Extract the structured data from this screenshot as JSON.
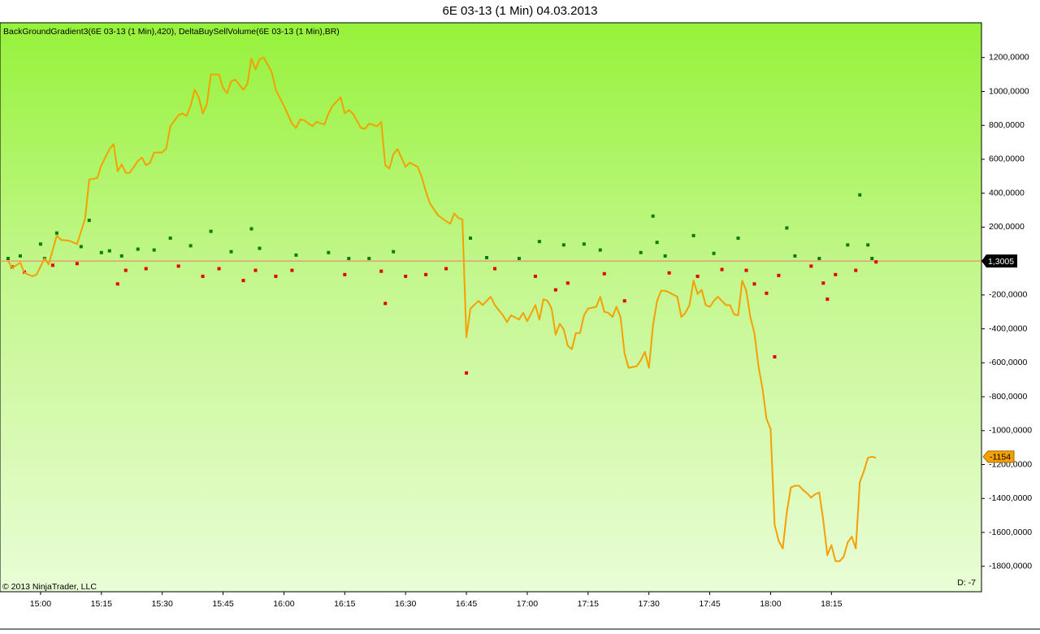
{
  "chart_data": {
    "type": "line",
    "title": "6E 03-13 (1 Min)  04.03.2013",
    "indicator_label": "BackGroundGradient3(6E 03-13 (1 Min),420), DeltaBuySellVolume(6E 03-13 (1 Min),BR)",
    "copyright": "© 2013 NinjaTrader, LLC",
    "corner_note": "D: -7",
    "price_marker": "1,3005",
    "xlim": [
      "14:50",
      "18:52"
    ],
    "xticks": [
      "15:00",
      "15:15",
      "15:30",
      "15:45",
      "16:00",
      "16:15",
      "16:30",
      "16:45",
      "17:00",
      "17:15",
      "17:30",
      "17:45",
      "18:00",
      "18:15"
    ],
    "ylim": [
      -1950000,
      1405000
    ],
    "yticks": [
      {
        "value": 1200000,
        "label": "1200,0000"
      },
      {
        "value": 1000000,
        "label": "1000,0000"
      },
      {
        "value": 800000,
        "label": "800,0000"
      },
      {
        "value": 600000,
        "label": "600,0000"
      },
      {
        "value": 400000,
        "label": "400,0000"
      },
      {
        "value": 200000,
        "label": "200,0000"
      },
      {
        "value": -200000,
        "label": "-200,0000"
      },
      {
        "value": -400000,
        "label": "-400,0000"
      },
      {
        "value": -600000,
        "label": "-600,0000"
      },
      {
        "value": -800000,
        "label": "-800,0000"
      },
      {
        "value": -1000000,
        "label": "-1000,0000"
      },
      {
        "value": -1200000,
        "label": "-1200,0000"
      },
      {
        "value": -1400000,
        "label": "-1400,0000"
      },
      {
        "value": -1600000,
        "label": "-1600,0000"
      },
      {
        "value": -1800000,
        "label": "-1800,0000"
      }
    ],
    "last_value_label": {
      "value": -1154000,
      "label": "-1154"
    },
    "line": {
      "color": "#f5a000",
      "x": [
        "14:52",
        "14:53",
        "14:55",
        "14:56",
        "14:58",
        "14:59",
        "15:01",
        "15:02",
        "15:04",
        "15:05",
        "15:07",
        "15:09",
        "15:11",
        "15:12",
        "15:14",
        "15:15",
        "15:17",
        "15:18",
        "15:19",
        "15:20",
        "15:21",
        "15:22",
        "15:24",
        "15:25",
        "15:26",
        "15:27",
        "15:28",
        "15:30",
        "15:31",
        "15:32",
        "15:34",
        "15:35",
        "15:36",
        "15:37",
        "15:38",
        "15:39",
        "15:40",
        "15:41",
        "15:42",
        "15:44",
        "15:45",
        "15:46",
        "15:47",
        "15:48",
        "15:50",
        "15:51",
        "15:52",
        "15:53",
        "15:54",
        "15:55",
        "15:57",
        "15:58",
        "16:00",
        "16:02",
        "16:03",
        "16:04",
        "16:05",
        "16:07",
        "16:08",
        "16:10",
        "16:11",
        "16:12",
        "16:14",
        "16:15",
        "16:16",
        "16:17",
        "16:19",
        "16:20",
        "16:21",
        "16:23",
        "16:24",
        "16:25",
        "16:26",
        "16:27",
        "16:28",
        "16:30",
        "16:31",
        "16:33",
        "16:34",
        "16:35",
        "16:36",
        "16:38",
        "16:40",
        "16:41",
        "16:42",
        "16:43",
        "16:44",
        "16:45",
        "16:46",
        "16:48",
        "16:49",
        "16:50",
        "16:51",
        "16:52",
        "16:54",
        "16:55",
        "16:56",
        "16:58",
        "16:59",
        "17:00",
        "17:02",
        "17:03",
        "17:04",
        "17:05",
        "17:06",
        "17:07",
        "17:08",
        "17:09",
        "17:10",
        "17:11",
        "17:12",
        "17:13",
        "17:14",
        "17:15",
        "17:17",
        "17:18",
        "17:19",
        "17:20",
        "17:21",
        "17:22",
        "17:23",
        "17:24",
        "17:25",
        "17:27",
        "17:28",
        "17:29",
        "17:30",
        "17:31",
        "17:32",
        "17:33",
        "17:34",
        "17:35",
        "17:37",
        "17:38",
        "17:39",
        "17:40",
        "17:41",
        "17:42",
        "17:43",
        "17:44",
        "17:45",
        "17:46",
        "17:47",
        "17:49",
        "17:50",
        "17:51",
        "17:52",
        "17:53",
        "17:54",
        "17:55",
        "17:56",
        "17:57",
        "17:58",
        "17:59",
        "18:00",
        "18:01",
        "18:02",
        "18:03",
        "18:04",
        "18:05",
        "18:06",
        "18:07",
        "18:08",
        "18:09",
        "18:10",
        "18:11",
        "18:12",
        "18:13",
        "18:14",
        "18:15",
        "18:16",
        "18:17",
        "18:18",
        "18:19",
        "18:20",
        "18:21",
        "18:22",
        "18:23",
        "18:24",
        "18:25",
        "18:26"
      ],
      "values": [
        0,
        -40000,
        -10000,
        -70000,
        -90000,
        -80000,
        15000,
        -20000,
        150000,
        125000,
        120000,
        100000,
        250000,
        480000,
        490000,
        565000,
        660000,
        690000,
        530000,
        570000,
        520000,
        520000,
        590000,
        610000,
        565000,
        580000,
        640000,
        640000,
        665000,
        795000,
        860000,
        870000,
        855000,
        915000,
        1010000,
        965000,
        870000,
        925000,
        1100000,
        1100000,
        1020000,
        990000,
        1060000,
        1070000,
        1010000,
        1045000,
        1195000,
        1130000,
        1190000,
        1200000,
        1115000,
        1010000,
        915000,
        810000,
        785000,
        835000,
        830000,
        795000,
        820000,
        805000,
        870000,
        915000,
        965000,
        870000,
        890000,
        870000,
        785000,
        780000,
        810000,
        795000,
        820000,
        565000,
        545000,
        630000,
        660000,
        555000,
        580000,
        555000,
        495000,
        410000,
        340000,
        270000,
        235000,
        220000,
        280000,
        255000,
        245000,
        -450000,
        -280000,
        -235000,
        -260000,
        -235000,
        -210000,
        -260000,
        -320000,
        -360000,
        -320000,
        -345000,
        -305000,
        -355000,
        -260000,
        -345000,
        -225000,
        -235000,
        -280000,
        -435000,
        -370000,
        -405000,
        -500000,
        -520000,
        -425000,
        -425000,
        -320000,
        -280000,
        -270000,
        -210000,
        -300000,
        -305000,
        -330000,
        -270000,
        -330000,
        -545000,
        -630000,
        -620000,
        -585000,
        -535000,
        -630000,
        -380000,
        -235000,
        -175000,
        -175000,
        -185000,
        -210000,
        -330000,
        -305000,
        -260000,
        -115000,
        -195000,
        -170000,
        -260000,
        -270000,
        -235000,
        -210000,
        -260000,
        -260000,
        -315000,
        -320000,
        -115000,
        -175000,
        -330000,
        -425000,
        -620000,
        -750000,
        -930000,
        -990000,
        -1555000,
        -1650000,
        -1695000,
        -1480000,
        -1335000,
        -1325000,
        -1325000,
        -1350000,
        -1370000,
        -1395000,
        -1375000,
        -1365000,
        -1530000,
        -1735000,
        -1675000,
        -1770000,
        -1770000,
        -1745000,
        -1660000,
        -1625000,
        -1695000,
        -1305000,
        -1240000,
        -1160000,
        -1154000,
        -1160000
      ]
    },
    "dots": [
      {
        "color": "#0a7d0a",
        "x": [
          "14:52",
          "14:55",
          "15:00",
          "15:01",
          "15:04",
          "15:10",
          "15:12",
          "15:15",
          "15:17",
          "15:20",
          "15:24",
          "15:28",
          "15:32",
          "15:37",
          "15:42",
          "15:47",
          "15:52",
          "15:54",
          "16:03",
          "16:11",
          "16:16",
          "16:21",
          "16:27",
          "16:46",
          "16:50",
          "16:58",
          "17:03",
          "17:09",
          "17:14",
          "17:18",
          "17:28",
          "17:31",
          "17:32",
          "17:34",
          "17:41",
          "17:46",
          "17:52",
          "18:04",
          "18:06",
          "18:12",
          "18:19",
          "18:22",
          "18:24",
          "18:25"
        ],
        "values": [
          15000,
          30000,
          100000,
          15000,
          165000,
          85000,
          240000,
          50000,
          60000,
          30000,
          70000,
          65000,
          135000,
          90000,
          175000,
          55000,
          190000,
          75000,
          35000,
          50000,
          15000,
          15000,
          55000,
          135000,
          20000,
          15000,
          115000,
          95000,
          100000,
          65000,
          50000,
          265000,
          110000,
          30000,
          150000,
          45000,
          135000,
          195000,
          30000,
          15000,
          95000,
          390000,
          95000,
          15000
        ]
      },
      {
        "color": "#e00000",
        "x": [
          "14:53",
          "14:56",
          "15:03",
          "15:09",
          "15:19",
          "15:21",
          "15:26",
          "15:34",
          "15:40",
          "15:44",
          "15:50",
          "15:53",
          "15:58",
          "16:02",
          "16:15",
          "16:24",
          "16:25",
          "16:30",
          "16:35",
          "16:40",
          "16:45",
          "16:52",
          "17:02",
          "17:07",
          "17:10",
          "17:19",
          "17:24",
          "17:35",
          "17:42",
          "17:48",
          "17:54",
          "17:56",
          "17:59",
          "18:01",
          "18:02",
          "18:10",
          "18:13",
          "18:14",
          "18:16",
          "18:21",
          "18:26"
        ],
        "values": [
          -35000,
          -65000,
          -25000,
          -15000,
          -135000,
          -55000,
          -45000,
          -30000,
          -90000,
          -45000,
          -115000,
          -55000,
          -90000,
          -55000,
          -80000,
          -60000,
          -250000,
          -90000,
          -80000,
          -45000,
          -660000,
          -45000,
          -90000,
          -170000,
          -130000,
          -75000,
          -235000,
          -70000,
          -90000,
          -50000,
          -55000,
          -135000,
          -190000,
          -565000,
          -85000,
          -30000,
          -130000,
          -225000,
          -80000,
          -55000,
          -5000
        ]
      }
    ]
  }
}
